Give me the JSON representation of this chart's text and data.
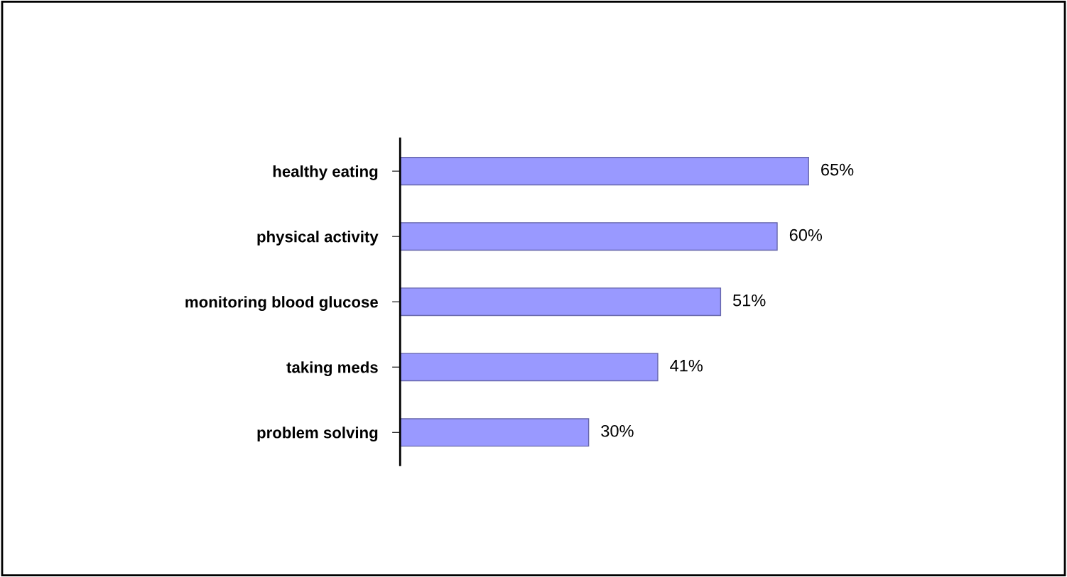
{
  "chart_data": {
    "type": "bar",
    "orientation": "horizontal",
    "categories": [
      "healthy eating",
      "physical activity",
      "monitoring blood glucose",
      "taking meds",
      "problem solving"
    ],
    "values": [
      65,
      60,
      51,
      41,
      30
    ],
    "value_labels": [
      "65%",
      "60%",
      "51%",
      "41%",
      "30%"
    ],
    "color": "#9999ff",
    "grid": false,
    "legend": false,
    "tick_labels": "y"
  }
}
